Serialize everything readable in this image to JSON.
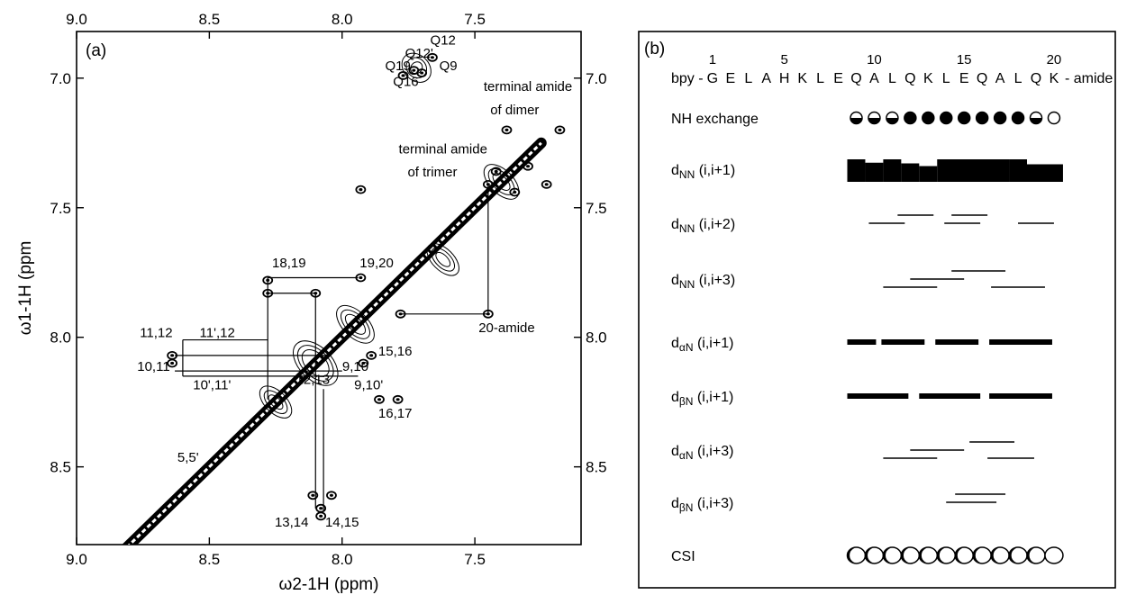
{
  "chart_data": [
    {
      "type": "scatter",
      "panel_label": "(a)",
      "xlabel": "ω2-1H  (ppm)",
      "ylabel": "ω1-1H  (ppm",
      "x_ticks": [
        "9.0",
        "8.5",
        "8.0",
        "7.5"
      ],
      "y_ticks": [
        "7.0",
        "7.5",
        "8.0",
        "8.5"
      ],
      "xlim": [
        9.0,
        7.1
      ],
      "ylim": [
        6.82,
        8.8
      ],
      "x_axis_reversed": true,
      "y_axis_reversed": true,
      "peak_labels": [
        {
          "text": "Q12",
          "x": 7.62,
          "y": 6.87
        },
        {
          "text": "Q12'",
          "x": 7.71,
          "y": 6.92
        },
        {
          "text": "Q19",
          "x": 7.79,
          "y": 6.97
        },
        {
          "text": "Q9",
          "x": 7.6,
          "y": 6.97
        },
        {
          "text": "Q16",
          "x": 7.76,
          "y": 7.03
        },
        {
          "text": "terminal amide",
          "x": 7.3,
          "y": 7.05
        },
        {
          "text": "of dimer",
          "x": 7.35,
          "y": 7.14
        },
        {
          "text": "terminal amide",
          "x": 7.62,
          "y": 7.29
        },
        {
          "text": "of trimer",
          "x": 7.66,
          "y": 7.38
        },
        {
          "text": "18,19",
          "x": 8.2,
          "y": 7.73
        },
        {
          "text": "19,20",
          "x": 7.87,
          "y": 7.73
        },
        {
          "text": "20-amide",
          "x": 7.38,
          "y": 7.98
        },
        {
          "text": "11,12",
          "x": 8.7,
          "y": 8.0
        },
        {
          "text": "11',12",
          "x": 8.47,
          "y": 8.0
        },
        {
          "text": "15,16",
          "x": 7.8,
          "y": 8.07
        },
        {
          "text": "9,10",
          "x": 7.95,
          "y": 8.13
        },
        {
          "text": "10,11",
          "x": 8.71,
          "y": 8.13
        },
        {
          "text": "10',11'",
          "x": 8.49,
          "y": 8.2
        },
        {
          "text": "12,13",
          "x": 8.11,
          "y": 8.18
        },
        {
          "text": "9,10'",
          "x": 7.9,
          "y": 8.2
        },
        {
          "text": "16,17",
          "x": 7.8,
          "y": 8.31
        },
        {
          "text": "5,5'",
          "x": 8.58,
          "y": 8.48
        },
        {
          "text": "13,14",
          "x": 8.19,
          "y": 8.73
        },
        {
          "text": "14,15",
          "x": 8.0,
          "y": 8.73
        }
      ],
      "peaks": [
        {
          "x": 8.28,
          "y": 7.78
        },
        {
          "x": 8.28,
          "y": 7.83
        },
        {
          "x": 8.1,
          "y": 7.83
        },
        {
          "x": 7.93,
          "y": 7.77
        },
        {
          "x": 7.78,
          "y": 7.91
        },
        {
          "x": 7.45,
          "y": 7.91
        },
        {
          "x": 8.64,
          "y": 8.07
        },
        {
          "x": 8.64,
          "y": 8.1
        },
        {
          "x": 7.89,
          "y": 8.07
        },
        {
          "x": 7.92,
          "y": 8.1
        },
        {
          "x": 7.86,
          "y": 8.24
        },
        {
          "x": 7.79,
          "y": 8.24
        },
        {
          "x": 8.08,
          "y": 8.66
        },
        {
          "x": 8.08,
          "y": 8.69
        },
        {
          "x": 8.11,
          "y": 8.61
        },
        {
          "x": 8.04,
          "y": 8.61
        },
        {
          "x": 7.45,
          "y": 7.41
        },
        {
          "x": 7.42,
          "y": 7.36
        },
        {
          "x": 7.35,
          "y": 7.44
        },
        {
          "x": 7.3,
          "y": 7.34
        },
        {
          "x": 7.23,
          "y": 7.41
        },
        {
          "x": 7.18,
          "y": 7.2
        },
        {
          "x": 7.38,
          "y": 7.2
        },
        {
          "x": 7.93,
          "y": 7.43
        },
        {
          "x": 7.77,
          "y": 6.99
        },
        {
          "x": 7.73,
          "y": 6.97
        },
        {
          "x": 7.66,
          "y": 6.92
        },
        {
          "x": 7.7,
          "y": 6.98
        }
      ],
      "connectivity_paths": [
        [
          [
            8.28,
            7.77
          ],
          [
            7.94,
            7.77
          ]
        ],
        [
          [
            8.28,
            7.77
          ],
          [
            8.28,
            8.24
          ]
        ],
        [
          [
            8.28,
            7.83
          ],
          [
            8.1,
            7.83
          ]
        ],
        [
          [
            8.1,
            7.83
          ],
          [
            8.1,
            8.66
          ]
        ],
        [
          [
            7.78,
            7.91
          ],
          [
            7.45,
            7.91
          ]
        ],
        [
          [
            7.45,
            7.91
          ],
          [
            7.45,
            7.41
          ]
        ],
        [
          [
            8.6,
            8.01
          ],
          [
            8.28,
            8.01
          ]
        ],
        [
          [
            8.6,
            8.01
          ],
          [
            8.6,
            8.15
          ]
        ],
        [
          [
            8.6,
            8.15
          ],
          [
            7.94,
            8.15
          ]
        ],
        [
          [
            8.63,
            8.07
          ],
          [
            8.05,
            8.07
          ]
        ],
        [
          [
            8.63,
            8.13
          ],
          [
            8.0,
            8.13
          ]
        ],
        [
          [
            8.07,
            8.2
          ],
          [
            8.07,
            8.67
          ]
        ]
      ]
    },
    {
      "type": "table",
      "panel_label": "(b)",
      "sequence_prefix": "bpy -",
      "sequence_suffix": "- amide",
      "sequence": [
        "G",
        "E",
        "L",
        "A",
        "H",
        "K",
        "L",
        "E",
        "Q",
        "A",
        "L",
        "Q",
        "K",
        "L",
        "E",
        "Q",
        "A",
        "L",
        "Q",
        "K"
      ],
      "residue_numbers": [
        {
          "label": "1",
          "residue": 1
        },
        {
          "label": "5",
          "residue": 5
        },
        {
          "label": "10",
          "residue": 10
        },
        {
          "label": "15",
          "residue": 15
        },
        {
          "label": "20",
          "residue": 20
        }
      ],
      "rows": [
        {
          "label": "NH exchange",
          "kind": "exchange",
          "residues": [
            9,
            10,
            11,
            12,
            13,
            14,
            15,
            16,
            17,
            18,
            19,
            20
          ],
          "states": [
            "half",
            "half",
            "half",
            "full",
            "full",
            "full",
            "full",
            "full",
            "full",
            "full",
            "half",
            "open"
          ]
        },
        {
          "label": "d",
          "sub": "NN",
          "rest": " (i,i+1)",
          "kind": "blocks",
          "values": [
            {
              "from": 9,
              "to": 10,
              "level": 1.0
            },
            {
              "from": 10,
              "to": 11,
              "level": 0.85
            },
            {
              "from": 11,
              "to": 12,
              "level": 1.0
            },
            {
              "from": 12,
              "to": 13,
              "level": 0.82
            },
            {
              "from": 13,
              "to": 14,
              "level": 0.7
            },
            {
              "from": 14,
              "to": 17,
              "level": 1.0
            },
            {
              "from": 18,
              "to": 19,
              "level": 1.0
            },
            {
              "from": 19,
              "to": 20,
              "level": 0.78
            }
          ]
        },
        {
          "label": "d",
          "sub": "NN",
          "rest": " (i,i+2)",
          "kind": "lines",
          "lines": [
            {
              "from": 10.2,
              "to": 12.2,
              "lane": 1
            },
            {
              "from": 11.8,
              "to": 13.8,
              "lane": 0
            },
            {
              "from": 14.8,
              "to": 16.8,
              "lane": 0
            },
            {
              "from": 14.4,
              "to": 16.4,
              "lane": 1
            },
            {
              "from": 18.5,
              "to": 20.5,
              "lane": 1
            }
          ]
        },
        {
          "label": "d",
          "sub": "NN",
          "rest": " (i,i+3)",
          "kind": "lines",
          "lines": [
            {
              "from": 14.8,
              "to": 17.8,
              "lane": 0
            },
            {
              "from": 12.5,
              "to": 15.5,
              "lane": 1
            },
            {
              "from": 11.0,
              "to": 14.0,
              "lane": 2
            },
            {
              "from": 17.0,
              "to": 20.0,
              "lane": 2
            }
          ]
        },
        {
          "label": "d",
          "sub": "αN",
          "rest": " (i,i+1)",
          "kind": "bars",
          "segments": [
            [
              9.0,
              10.2
            ],
            [
              10.9,
              12.9
            ],
            [
              13.9,
              15.9
            ],
            [
              16.9,
              20.0
            ]
          ]
        },
        {
          "label": "d",
          "sub": "βN",
          "rest": " (i,i+1)",
          "kind": "bars",
          "segments": [
            [
              9.0,
              12.0
            ],
            [
              13.0,
              16.0
            ],
            [
              16.9,
              20.0
            ]
          ]
        },
        {
          "label": "d",
          "sub": "αN",
          "rest": " (i,i+3)",
          "kind": "lines",
          "lines": [
            {
              "from": 15.8,
              "to": 18.3,
              "lane": 0
            },
            {
              "from": 12.5,
              "to": 15.5,
              "lane": 1
            },
            {
              "from": 11.0,
              "to": 14.0,
              "lane": 2
            },
            {
              "from": 16.8,
              "to": 19.4,
              "lane": 2
            }
          ]
        },
        {
          "label": "d",
          "sub": "βN",
          "rest": " (i,i+3)",
          "kind": "lines",
          "lines": [
            {
              "from": 15.0,
              "to": 17.8,
              "lane": 0
            },
            {
              "from": 14.5,
              "to": 17.3,
              "lane": 1
            }
          ]
        },
        {
          "label": "CSI",
          "kind": "csi",
          "from": 9,
          "to": 20
        }
      ]
    }
  ]
}
